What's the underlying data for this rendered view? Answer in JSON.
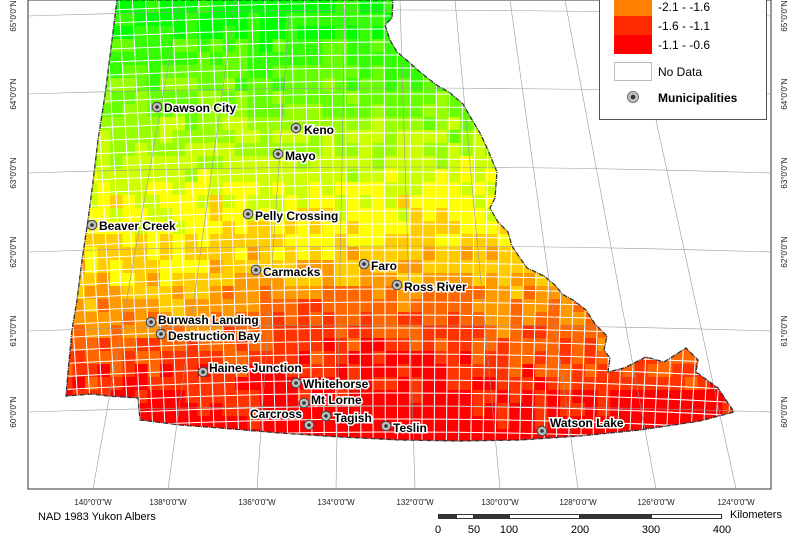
{
  "legend": {
    "classes": [
      {
        "label": "-2.1 - -1.6",
        "color": "#ff7f00"
      },
      {
        "label": "-1.6 - -1.1",
        "color": "#ff2a00"
      },
      {
        "label": "-1.1 - -0.6",
        "color": "#ff0000"
      }
    ],
    "no_data_label": "No Data",
    "municipalities_label": "Municipalities"
  },
  "map": {
    "municipalities": [
      {
        "name": "Dawson City"
      },
      {
        "name": "Keno"
      },
      {
        "name": "Mayo"
      },
      {
        "name": "Pelly Crossing"
      },
      {
        "name": "Beaver Creek"
      },
      {
        "name": "Carmacks"
      },
      {
        "name": "Faro"
      },
      {
        "name": "Ross River"
      },
      {
        "name": "Burwash Landing"
      },
      {
        "name": "Destruction Bay"
      },
      {
        "name": "Haines Junction"
      },
      {
        "name": "Whitehorse"
      },
      {
        "name": "Mt Lorne"
      },
      {
        "name": "Carcross"
      },
      {
        "name": "Tagish"
      },
      {
        "name": "Teslin"
      },
      {
        "name": "Watson Lake"
      }
    ],
    "longitude_labels": [
      "140°0'0\"W",
      "138°0'0\"W",
      "136°0'0\"W",
      "134°0'0\"W",
      "132°0'0\"W",
      "130°0'0\"W",
      "128°0'0\"W",
      "126°0'0\"W",
      "124°0'0\"W"
    ],
    "latitude_labels": [
      "60°0'0\"N",
      "61°0'0\"N",
      "62°0'0\"N",
      "63°0'0\"N",
      "64°0'0\"N",
      "65°0'0\"N"
    ]
  },
  "footer": {
    "crs": "NAD 1983 Yukon Albers",
    "scale_ticks": [
      "0",
      "50",
      "100",
      "200",
      "300",
      "400"
    ],
    "scale_unit": "Kilometers"
  },
  "colors": {
    "ramp": [
      "#00ff00",
      "#33ff00",
      "#66ff00",
      "#99ff00",
      "#ccff00",
      "#ffff00",
      "#ffcc00",
      "#ff9900",
      "#ff6600",
      "#ff3300",
      "#ff0000"
    ],
    "grid": "#ffffff",
    "boundary": "#333333",
    "marker_fill": "#bdbdbd"
  }
}
